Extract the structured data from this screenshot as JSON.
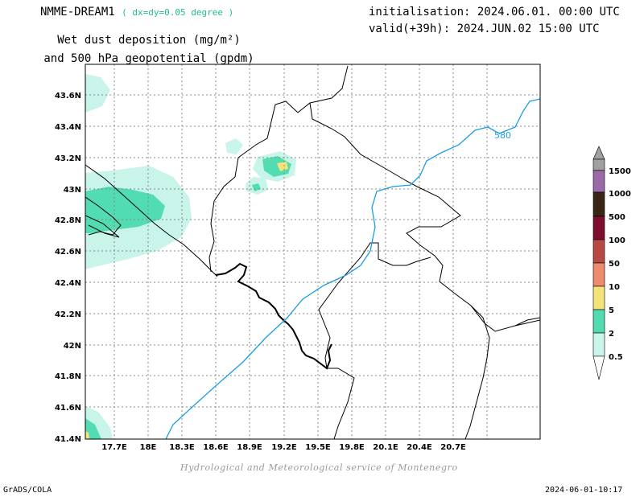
{
  "header": {
    "model": "NMME-DREAM1",
    "grid_info": "( dx=dy=0.05 degree )",
    "title_line1": "Wet dust deposition (mg/m²)",
    "title_line2": "and 500 hPa geopotential (gpdm)",
    "init": "initialisation: 2024.06.01. 00:00 UTC",
    "valid": "valid(+39h): 2024.JUN.02 15:00 UTC"
  },
  "map": {
    "lat_labels": [
      "43.6N",
      "43.4N",
      "43.2N",
      "43N",
      "42.8N",
      "42.6N",
      "42.4N",
      "42.2N",
      "42N",
      "41.8N",
      "41.6N",
      "41.4N"
    ],
    "lon_labels": [
      "17.7E",
      "18E",
      "18.3E",
      "18.6E",
      "18.9E",
      "19.2E",
      "19.5E",
      "19.8E",
      "20.1E",
      "20.4E",
      "20.7E"
    ],
    "contour_label": "580",
    "colors": {
      "contour": "#1a9ee6",
      "frame": "#000000",
      "grid": "#888888"
    }
  },
  "legend": {
    "levels": [
      "1500",
      "1000",
      "500",
      "100",
      "50",
      "10",
      "5",
      "2",
      "0.5"
    ],
    "colors": [
      "#a0a0a0",
      "#9b69a8",
      "#3b2515",
      "#7e0d2e",
      "#b84a45",
      "#ee8a6e",
      "#f4e27a",
      "#52dcb2",
      "#c8f4ea"
    ]
  },
  "footer": {
    "credit": "Hydrological and Meteorological service of Montenegro",
    "left": "GrADS/COLA",
    "right": "2024-06-01-10:17"
  }
}
